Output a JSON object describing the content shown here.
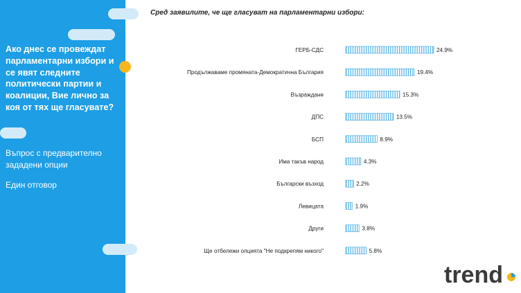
{
  "sidebar": {
    "question": "Ако днес се провеждат парламентарни избори и се явят следните политически партии и коалиции, Вие лично за коя от тях ще гласувате?",
    "question_type": "Въпрос с предварително зададени опции",
    "answer_type": "Един отговор"
  },
  "logo": {
    "text": "trend"
  },
  "colors": {
    "sidebar": "#1e9ee4",
    "accent_dot": "#f7b61d",
    "bar_stripe": "#5bb8e8",
    "bar_border": "#3aa3df",
    "logo_text": "#3a3a3a"
  },
  "chart_data": {
    "type": "bar",
    "orientation": "horizontal",
    "title": "Сред заявилите, че ще гласуват на парламентарни избори:",
    "categories": [
      "ГЕРБ-СДС",
      "Продължаваме промяната-Демократична България",
      "Възраждане",
      "ДПС",
      "БСП",
      "Има такъв народ",
      "Български възход",
      "Левицата",
      "Други",
      "Ще отбележи опцията \"Не подкрепям никого\""
    ],
    "values": [
      24.9,
      19.4,
      15.3,
      13.5,
      8.9,
      4.3,
      2.2,
      1.9,
      3.8,
      5.8
    ],
    "value_labels": [
      "24.9%",
      "19.4%",
      "15.3%",
      "13.5%",
      "8.9%",
      "4.3%",
      "2.2%",
      "1.9%",
      "3.8%",
      "5.8%"
    ],
    "unit": "%",
    "grid": false,
    "legend": "none"
  }
}
